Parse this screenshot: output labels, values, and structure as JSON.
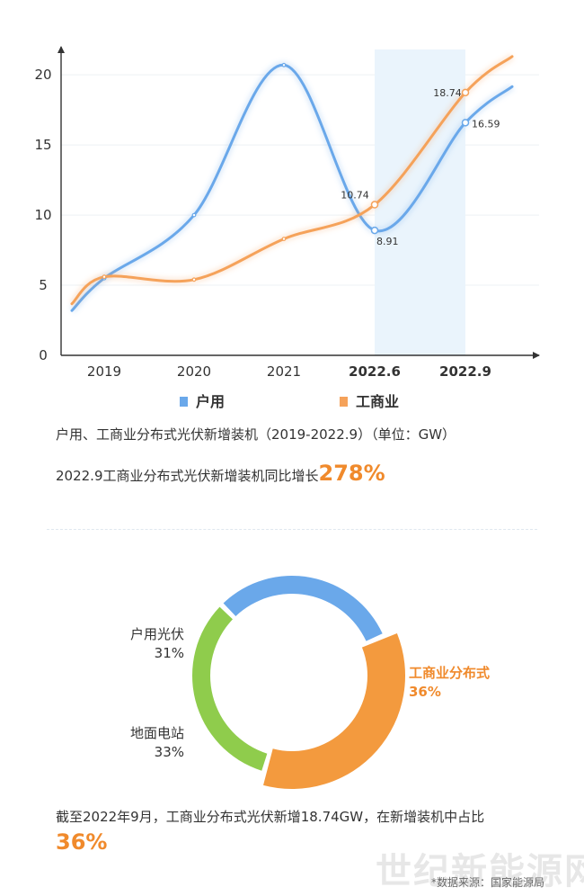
{
  "chart_data": [
    {
      "type": "line",
      "categories": [
        "2019",
        "2020",
        "2021",
        "2022.6",
        "2022.9"
      ],
      "series": [
        {
          "name": "户用",
          "values": [
            5.5,
            10,
            20.7,
            8.91,
            16.59
          ],
          "color": "#6aa8ea",
          "point_labels": [
            "",
            "",
            "",
            "8.91",
            "16.59"
          ]
        },
        {
          "name": "工商业",
          "values": [
            5.6,
            5.4,
            8.3,
            10.74,
            18.74
          ],
          "color": "#f5a25a",
          "point_labels": [
            "",
            "",
            "",
            "10.74",
            "18.74"
          ]
        }
      ],
      "yticks": [
        "0",
        "5",
        "10",
        "15",
        "20"
      ],
      "ylim": [
        0,
        22
      ],
      "bold_categories": [
        "2022.6",
        "2022.9"
      ],
      "highlight_range": [
        "2022.6",
        "2022.9"
      ],
      "highlight_color": "#eaf4fc",
      "grid": true,
      "legend_position": "bottom"
    },
    {
      "type": "pie",
      "categories": [
        "户用光伏",
        "工商业分布式",
        "地面电站"
      ],
      "values": [
        31,
        36,
        33
      ],
      "percent_labels": [
        "31%",
        "36%",
        "33%"
      ],
      "colors": [
        "#6aa8ea",
        "#f39a3e",
        "#8fcc4c"
      ],
      "highlight_color": "#f08a2c"
    }
  ],
  "captions": {
    "title": "户用、工商业分布式光伏新增装机（2019-2022.9）（单位：GW）",
    "growth_prefix": "2022.9工商业分布式光伏新增装机同比增长",
    "growth_value": "278%",
    "share_text": "截至2022年9月，工商业分布式光伏新增18.74GW，在新增装机中占比",
    "share_value": "36%"
  },
  "watermark": "世纪新能源网",
  "source": "*数据来源：国家能源局"
}
